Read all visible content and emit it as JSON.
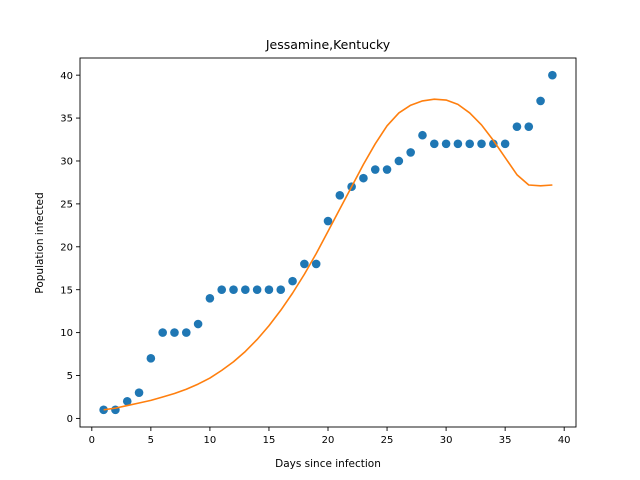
{
  "chart_data": {
    "type": "scatter",
    "title": "Jessamine,Kentucky",
    "xlabel": "Days since infection",
    "ylabel": "Population infected",
    "xlim": [
      -1,
      41
    ],
    "ylim": [
      -1,
      42
    ],
    "xticks": [
      0,
      5,
      10,
      15,
      20,
      25,
      30,
      35,
      40
    ],
    "yticks": [
      0,
      5,
      10,
      15,
      20,
      25,
      30,
      35,
      40
    ],
    "grid": false,
    "series": [
      {
        "kind": "scatter",
        "color": "#1f77b4",
        "x": [
          1,
          2,
          3,
          4,
          5,
          6,
          7,
          8,
          9,
          10,
          11,
          12,
          13,
          14,
          15,
          16,
          17,
          18,
          19,
          20,
          21,
          22,
          23,
          24,
          25,
          26,
          27,
          28,
          29,
          30,
          31,
          32,
          33,
          34,
          35,
          36,
          37,
          38,
          39
        ],
        "y": [
          1,
          1,
          2,
          3,
          7,
          10,
          10,
          10,
          11,
          14,
          15,
          15,
          15,
          15,
          15,
          15,
          16,
          18,
          18,
          23,
          26,
          27,
          28,
          29,
          29,
          30,
          31,
          33,
          32,
          32,
          32,
          32,
          32,
          32,
          32,
          34,
          34,
          37,
          40
        ]
      },
      {
        "kind": "line",
        "color": "#ff7f0e",
        "x": [
          1,
          2,
          3,
          4,
          5,
          6,
          7,
          8,
          9,
          10,
          11,
          12,
          13,
          14,
          15,
          16,
          17,
          18,
          19,
          20,
          21,
          22,
          23,
          24,
          25,
          26,
          27,
          28,
          29,
          30,
          31,
          32,
          33,
          34,
          35,
          36,
          37,
          38,
          39
        ],
        "y": [
          1.0,
          1.2,
          1.5,
          1.8,
          2.1,
          2.5,
          2.9,
          3.4,
          4.0,
          4.7,
          5.6,
          6.6,
          7.8,
          9.2,
          10.8,
          12.6,
          14.6,
          16.8,
          19.2,
          21.8,
          24.4,
          27.0,
          29.6,
          32.0,
          34.1,
          35.6,
          36.5,
          37.0,
          37.2,
          37.1,
          36.6,
          35.6,
          34.2,
          32.4,
          30.4,
          28.4,
          27.2,
          27.1,
          27.2
        ]
      }
    ]
  }
}
